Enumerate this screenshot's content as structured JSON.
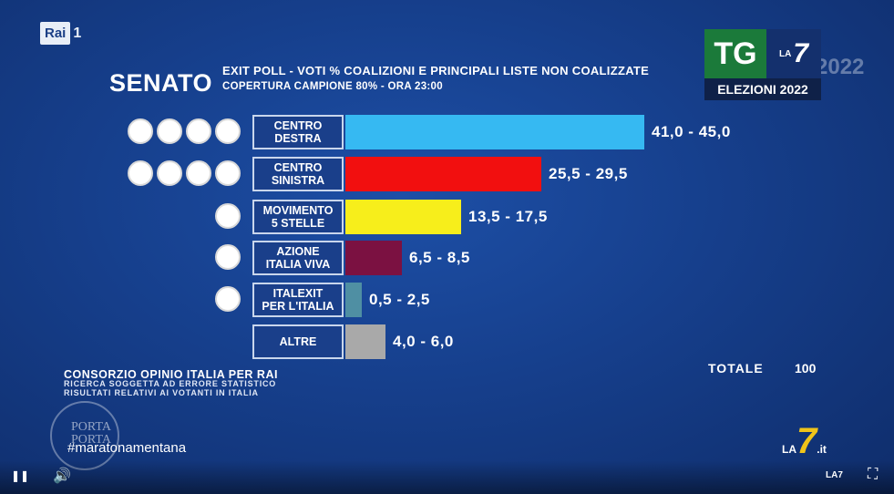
{
  "channel": {
    "rai": "Rai",
    "rai_num": "1"
  },
  "header": {
    "title": "SENATO",
    "subtitle1": "EXIT POLL - VOTI % COALIZIONI E PRINCIPALI LISTE NON COALIZZATE",
    "subtitle2": "COPERTURA CAMPIONE 80% - ORA 23:00"
  },
  "tg_logo": {
    "tg": "TG",
    "la": "LA",
    "seven": "7",
    "label": "ELEZIONI 2022",
    "ghost": "2022"
  },
  "chart_data": {
    "type": "bar",
    "orientation": "horizontal",
    "categories": [
      "CENTRO DESTRA",
      "CENTRO SINISTRA",
      "MOVIMENTO 5 STELLE",
      "AZIONE ITALIA VIVA",
      "ITALEXIT PER L'ITALIA",
      "ALTRE"
    ],
    "label_lines": [
      [
        "CENTRO",
        "DESTRA"
      ],
      [
        "CENTRO",
        "SINISTRA"
      ],
      [
        "MOVIMENTO",
        "5 STELLE"
      ],
      [
        "AZIONE",
        "ITALIA VIVA"
      ],
      [
        "ITALEXIT",
        "PER L'ITALIA"
      ],
      [
        "ALTRE"
      ]
    ],
    "ranges": [
      [
        41.0,
        45.0
      ],
      [
        25.5,
        29.5
      ],
      [
        13.5,
        17.5
      ],
      [
        6.5,
        8.5
      ],
      [
        0.5,
        2.5
      ],
      [
        4.0,
        6.0
      ]
    ],
    "range_labels": [
      "41,0 - 45,0",
      "25,5 - 29,5",
      "13,5 - 17,5",
      "6,5 - 8,5",
      "0,5 - 2,5",
      "4,0 - 6,0"
    ],
    "colors": [
      "#36b9f2",
      "#f20f0f",
      "#f7ee1b",
      "#7b1141",
      "#4f8fa3",
      "#a9a9a9"
    ],
    "logo_counts": [
      4,
      4,
      1,
      1,
      1,
      0
    ]
  },
  "totals": {
    "label": "TOTALE",
    "value": "100"
  },
  "source": {
    "line1": "CONSORZIO OPINIO ITALIA PER RAI",
    "line2": "RICERCA SOGGETTA AD ERRORE STATISTICO",
    "line3": "RISULTATI RELATIVI AI VOTANTI IN ITALIA"
  },
  "overlay": {
    "porta1": "PORTA",
    "porta2": "PORTA",
    "hashtag": "#maratonamentana",
    "la7_la": "LA",
    "la7_seven": "7",
    "la7_it": ".it"
  },
  "player": {
    "pause": "❚❚",
    "volume": "🔊",
    "fullscreen": "⛶",
    "small_logo": "LA7"
  }
}
